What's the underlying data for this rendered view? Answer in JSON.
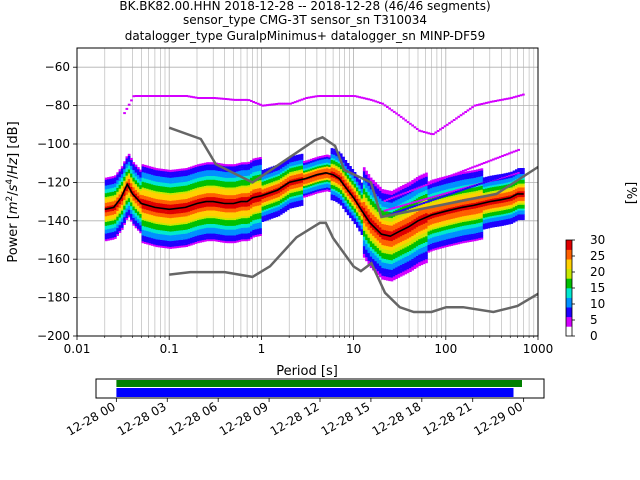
{
  "title": {
    "line1": "BK.BK82.00.HHN   2018-12-28 -- 2018-12-28  (46/46 segments)",
    "line2": "sensor_type CMG-3T sensor_sn T310034",
    "line3": "datalogger_type GuralpMinimus+ datalogger_sn MINP-DF59"
  },
  "chart_data": [
    {
      "type": "heatmap",
      "subtype": "probabilistic-power-spectral-density",
      "xlabel": "Period [s]",
      "ylabel": "Power [m^2/s^4/Hz] [dB]",
      "xscale": "log",
      "xlim": [
        0.01,
        1000
      ],
      "ylim": [
        -200,
        -50
      ],
      "x_ticks": [
        {
          "value": 0.01,
          "label": "0.01"
        },
        {
          "value": 0.1,
          "label": "0.1"
        },
        {
          "value": 1,
          "label": "1"
        },
        {
          "value": 10,
          "label": "10"
        },
        {
          "value": 100,
          "label": "100"
        },
        {
          "value": 1000,
          "label": "1000"
        }
      ],
      "y_ticks": [
        {
          "value": -60,
          "label": "−60"
        },
        {
          "value": -80,
          "label": "−80"
        },
        {
          "value": -100,
          "label": "−100"
        },
        {
          "value": -120,
          "label": "−120"
        },
        {
          "value": -140,
          "label": "−140"
        },
        {
          "value": -160,
          "label": "−160"
        },
        {
          "value": -180,
          "label": "−180"
        },
        {
          "value": -200,
          "label": "−200"
        }
      ],
      "grid": true,
      "colorbar": {
        "label": "[%]",
        "range": [
          0,
          30
        ],
        "ticks": [
          {
            "value": 0,
            "label": "0"
          },
          {
            "value": 5,
            "label": "5"
          },
          {
            "value": 10,
            "label": "10"
          },
          {
            "value": 15,
            "label": "15"
          },
          {
            "value": 20,
            "label": "20"
          },
          {
            "value": 25,
            "label": "25"
          },
          {
            "value": 30,
            "label": "30"
          }
        ],
        "colors": [
          "#ffffff",
          "#d400ff",
          "#1e00ff",
          "#0090ff",
          "#00e8d0",
          "#00c000",
          "#c8e800",
          "#ffd000",
          "#ff6000",
          "#e00000"
        ]
      },
      "series": [
        {
          "role": "mean",
          "color": "#000000",
          "x": [
            0.02,
            0.025,
            0.03,
            0.035,
            0.04,
            0.05,
            0.07,
            0.1,
            0.15,
            0.2,
            0.25,
            0.3,
            0.4,
            0.5,
            0.6,
            0.7,
            0.8,
            1,
            1.5,
            2,
            3,
            4,
            5,
            6,
            7,
            8,
            10,
            12,
            15,
            20,
            25,
            30,
            40,
            50,
            70,
            100,
            150,
            200,
            300,
            400,
            500,
            600,
            700
          ],
          "y": [
            -134,
            -133,
            -128,
            -121,
            -126,
            -131,
            -133,
            -134,
            -133,
            -131,
            -130,
            -130,
            -131,
            -131,
            -130,
            -130,
            -128,
            -127,
            -124,
            -120,
            -118,
            -116,
            -115,
            -116,
            -118,
            -122,
            -128,
            -134,
            -141,
            -147,
            -148,
            -146,
            -143,
            -140,
            -137,
            -135,
            -133,
            -132,
            -130,
            -129,
            -128,
            -126,
            -126
          ]
        },
        {
          "role": "max-envelope",
          "color": "#c800ff",
          "x": [
            0.02,
            0.025,
            0.03,
            0.04,
            0.05,
            0.07,
            0.1,
            0.15,
            0.2,
            0.3,
            0.5,
            0.7,
            1,
            1.5,
            2,
            3,
            4,
            5,
            6,
            7,
            8,
            10,
            15,
            20,
            30,
            50,
            70,
            100,
            200,
            300,
            500,
            700
          ],
          "y": [
            -93,
            -90,
            -86,
            -75,
            -75,
            -75,
            -75,
            -75,
            -76,
            -76,
            -77,
            -77,
            -80,
            -79,
            -79,
            -76,
            -75,
            -75,
            -75,
            -75,
            -75,
            -75,
            -77,
            -79,
            -85,
            -93,
            -95,
            -90,
            -80,
            -78,
            -76,
            -74
          ]
        }
      ],
      "reference_curves": [
        {
          "name": "NHNM",
          "color": "#666666",
          "x": [
            0.1,
            0.22,
            0.32,
            0.8,
            3.8,
            4.6,
            6.3,
            7.9,
            15.4,
            20,
            354.8,
            1000
          ],
          "y": [
            -91.5,
            -97.4,
            -110.5,
            -120,
            -98,
            -96.5,
            -101,
            -113.5,
            -120,
            -138,
            -126,
            -112
          ]
        },
        {
          "name": "NLNM",
          "color": "#666666",
          "x": [
            0.1,
            0.17,
            0.4,
            0.8,
            1.24,
            2.4,
            4.3,
            5,
            6,
            10,
            12,
            15.6,
            21.9,
            31.6,
            45,
            70,
            101,
            154,
            328,
            600,
            1000
          ],
          "y": [
            -168,
            -166.7,
            -166.7,
            -169.2,
            -163.7,
            -148.6,
            -141.1,
            -141.1,
            -149,
            -163.8,
            -166.2,
            -162.1,
            -177.5,
            -185,
            -187.5,
            -187.5,
            -185,
            -185,
            -187.5,
            -184.4,
            -178
          ]
        }
      ]
    },
    {
      "type": "timeline",
      "subtype": "data-coverage",
      "x_tick_labels": [
        "12-28 00",
        "12-28 03",
        "12-28 06",
        "12-28 09",
        "12-28 12",
        "12-28 15",
        "12-28 18",
        "12-28 21",
        "12-29 00"
      ],
      "x_tick_hours": [
        0,
        3,
        6,
        9,
        12,
        15,
        18,
        21,
        24
      ],
      "xlim_hours": [
        -1.2,
        25.2
      ],
      "series": [
        {
          "role": "data",
          "color": "#008000",
          "start_hour": 0,
          "end_hour": 23.9
        },
        {
          "role": "used-psd-segments",
          "color": "#0000ff",
          "start_hour": 0,
          "end_hour": 23.4
        }
      ]
    }
  ]
}
